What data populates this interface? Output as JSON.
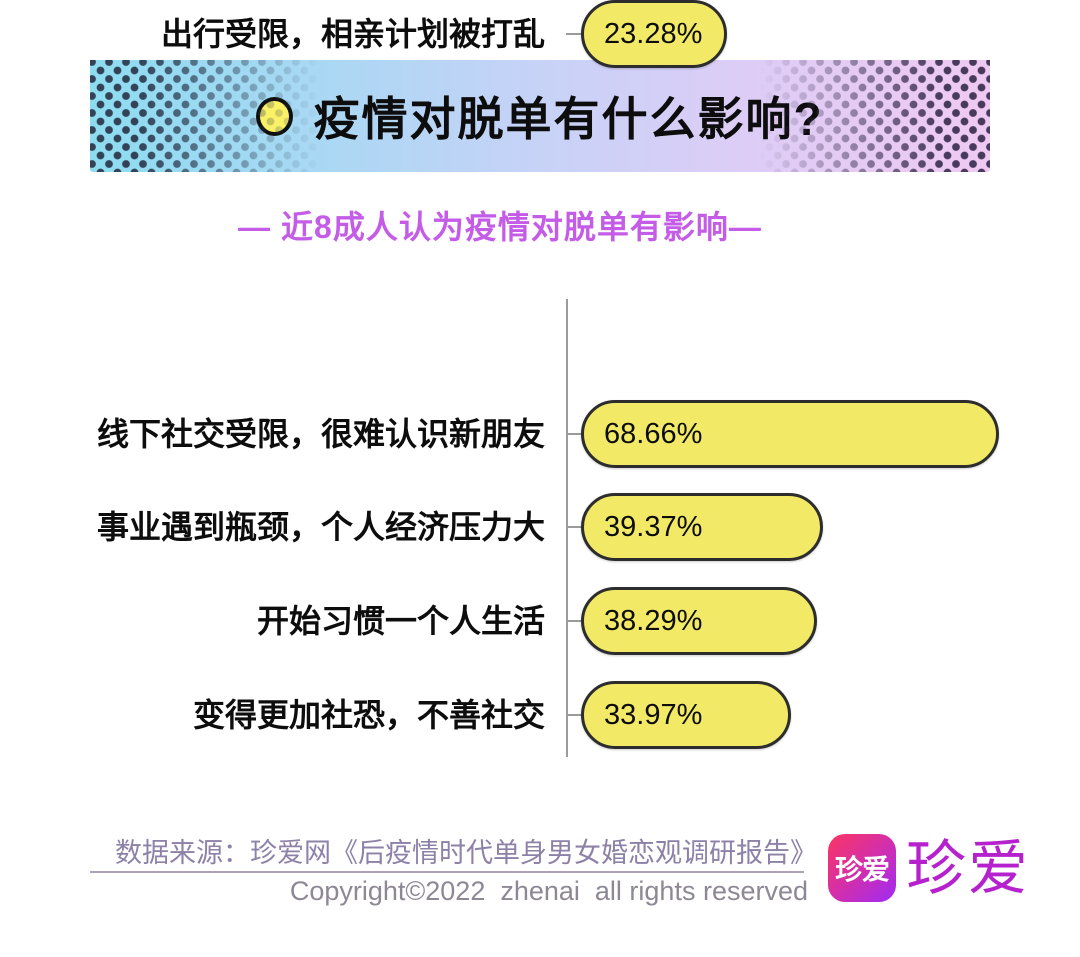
{
  "page": {
    "background": "#ffffff"
  },
  "header": {
    "title": "疫情对脱单有什么影响?",
    "bullet_icon": "yellow-circle-icon",
    "gradient_left": "#8ddcf0",
    "gradient_right": "#efc9f2",
    "halftone_dot_color_left": "#2d3a4e",
    "halftone_dot_color_right": "#3e3254"
  },
  "subtitle": {
    "text": "— 近8成人认为疫情对脱单有影响—",
    "color": "#c45ce8"
  },
  "chart_data": {
    "type": "bar",
    "orientation": "horizontal",
    "title": "疫情对脱单有什么影响?",
    "subtitle": "近8成人认为疫情对脱单有影响",
    "categories": [
      "线下社交受限，很难认识新朋友",
      "事业遇到瓶颈，个人经济压力大",
      "开始习惯一个人生活",
      "变得更加社恐，不善社交",
      "出行受限，相亲计划被打乱"
    ],
    "values": [
      68.66,
      39.37,
      38.29,
      33.97,
      23.28
    ],
    "value_labels": [
      "68.66%",
      "39.37%",
      "38.29%",
      "33.97%",
      "23.28%"
    ],
    "xlim": [
      0,
      70
    ],
    "grid": false,
    "legend": false,
    "value_label_position": "inside-left",
    "bar_color": "#f2ea67",
    "bar_border_color": "#2d2d2d",
    "axis_color": "#9b9b9b"
  },
  "footer": {
    "source": "数据来源：珍爱网《后疫情时代单身男女婚恋观调研报告》",
    "copyright": "Copyright©2022  zhenai  all rights reserved",
    "logo": {
      "icon_text": "珍爱",
      "wordmark": "珍爱",
      "icon_gradient_start": "#fb3560",
      "icon_gradient_end": "#9e2bf5",
      "wordmark_color": "#b521cd"
    }
  }
}
